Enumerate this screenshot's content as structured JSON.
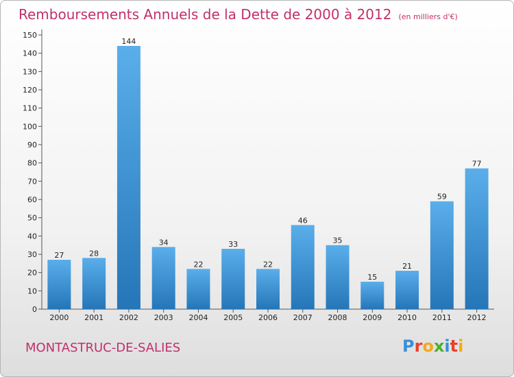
{
  "chart_data": {
    "type": "bar",
    "title": "Remboursements Annuels de la Dette de 2000 à 2012",
    "subtitle": "(en milliers d'€)",
    "categories": [
      "2000",
      "2001",
      "2002",
      "2003",
      "2004",
      "2005",
      "2006",
      "2007",
      "2008",
      "2009",
      "2010",
      "2011",
      "2012"
    ],
    "values": [
      27,
      28,
      144,
      34,
      22,
      33,
      22,
      46,
      35,
      15,
      21,
      59,
      77
    ],
    "ylim": [
      0,
      150
    ],
    "yticks": [
      0,
      10,
      20,
      30,
      40,
      50,
      60,
      70,
      80,
      90,
      100,
      110,
      120,
      130,
      140,
      150
    ],
    "grid": false,
    "bar_color": "#2f80c6"
  },
  "footer": {
    "commune": "MONTASTRUC-DE-SALIES",
    "logo_letters": [
      {
        "char": "P",
        "color": "#3a8fd8"
      },
      {
        "char": "r",
        "color": "#e8402a"
      },
      {
        "char": "o",
        "color": "#f2a81d"
      },
      {
        "char": "x",
        "color": "#4caf2f"
      },
      {
        "char": "i",
        "color": "#3a8fd8"
      },
      {
        "char": "t",
        "color": "#e8402a"
      },
      {
        "char": "i",
        "color": "#f2a81d"
      }
    ]
  }
}
